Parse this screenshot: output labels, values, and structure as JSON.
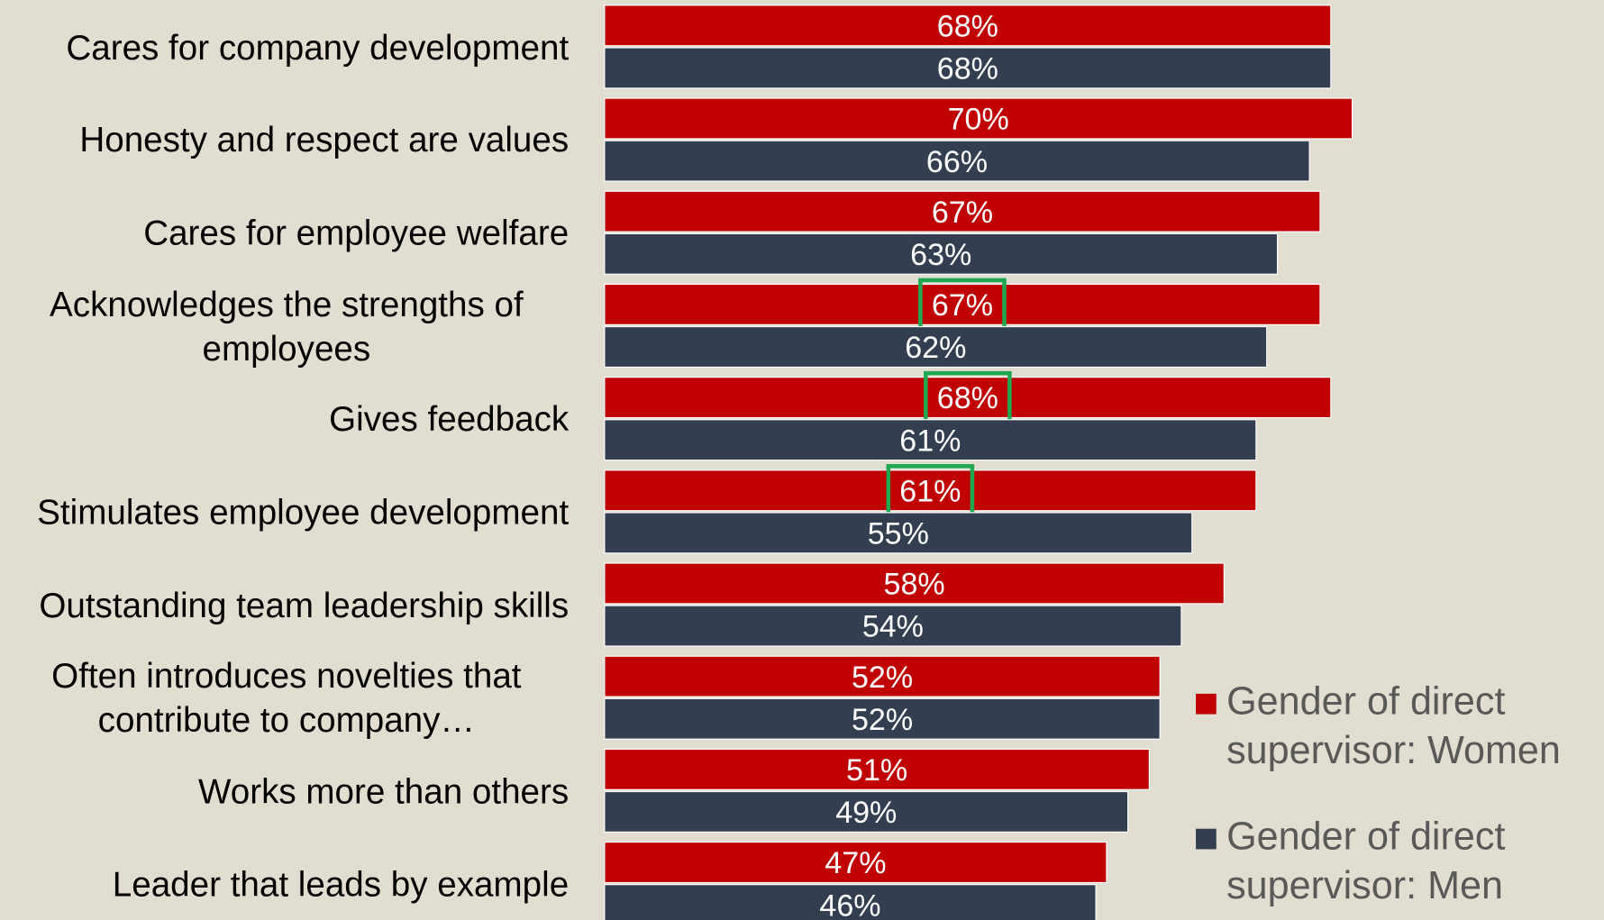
{
  "chart_data": {
    "type": "bar",
    "orientation": "horizontal",
    "categories": [
      "Cares for company development",
      "Honesty and respect are values",
      "Cares for employee welfare",
      "Acknowledges the strengths of employees",
      "Gives feedback",
      "Stimulates employee development",
      "Outstanding team leadership skills",
      "Often introduces novelties that contribute to company…",
      "Works more than others",
      "Leader that leads by example"
    ],
    "series": [
      {
        "name": "Gender of direct supervisor: Women",
        "color": "#c00000",
        "values": [
          68,
          70,
          67,
          67,
          68,
          61,
          58,
          52,
          51,
          47
        ],
        "value_labels": [
          "68%",
          "70%",
          "67%",
          "67%",
          "68%",
          "61%",
          "58%",
          "52%",
          "51%",
          "47%"
        ]
      },
      {
        "name": "Gender of direct supervisor: Men",
        "color": "#333f50",
        "values": [
          68,
          66,
          63,
          62,
          61,
          55,
          54,
          52,
          49,
          46
        ],
        "value_labels": [
          "68%",
          "66%",
          "63%",
          "62%",
          "61%",
          "55%",
          "54%",
          "52%",
          "49%",
          "46%"
        ]
      }
    ],
    "legend": "right"
  }
}
